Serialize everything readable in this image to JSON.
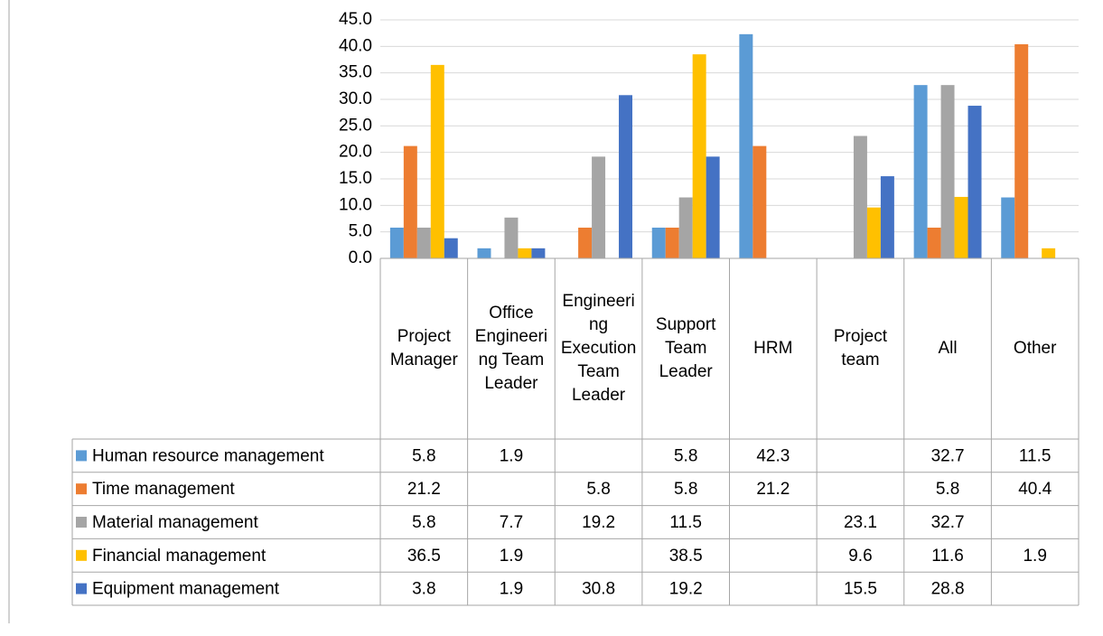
{
  "chart_data": {
    "type": "bar",
    "categories": [
      "Project Manager",
      "Office Engineering Team Leader",
      "Engineering Execution Team Leader",
      "Support Team Leader",
      "HRM",
      "Project team",
      "All",
      "Other"
    ],
    "series": [
      {
        "name": "Human resource management",
        "color": "#5b9bd5",
        "values": [
          5.8,
          1.9,
          null,
          5.8,
          42.3,
          null,
          32.7,
          11.5
        ]
      },
      {
        "name": "Time management",
        "color": "#ed7d31",
        "values": [
          21.2,
          null,
          5.8,
          5.8,
          21.2,
          null,
          5.8,
          40.4
        ]
      },
      {
        "name": "Material management",
        "color": "#a5a5a5",
        "values": [
          5.8,
          7.7,
          19.2,
          11.5,
          null,
          23.1,
          32.7,
          null
        ]
      },
      {
        "name": "Financial management",
        "color": "#ffc000",
        "values": [
          36.5,
          1.9,
          null,
          38.5,
          null,
          9.6,
          11.6,
          1.9
        ]
      },
      {
        "name": "Equipment management",
        "color": "#4472c4",
        "values": [
          3.8,
          1.9,
          30.8,
          19.2,
          null,
          15.5,
          28.8,
          null
        ]
      }
    ],
    "ylim": [
      0,
      45
    ],
    "yticks": [
      {
        "value": 0,
        "label": "0.0"
      },
      {
        "value": 5,
        "label": "5.0"
      },
      {
        "value": 10,
        "label": "10.0"
      },
      {
        "value": 15,
        "label": "15.0"
      },
      {
        "value": 20,
        "label": "20.0"
      },
      {
        "value": 25,
        "label": "25.0"
      },
      {
        "value": 30,
        "label": "30.0"
      },
      {
        "value": 35,
        "label": "35.0"
      },
      {
        "value": 40,
        "label": "40.0"
      },
      {
        "value": 45,
        "label": "45.0"
      }
    ],
    "grid": true
  }
}
